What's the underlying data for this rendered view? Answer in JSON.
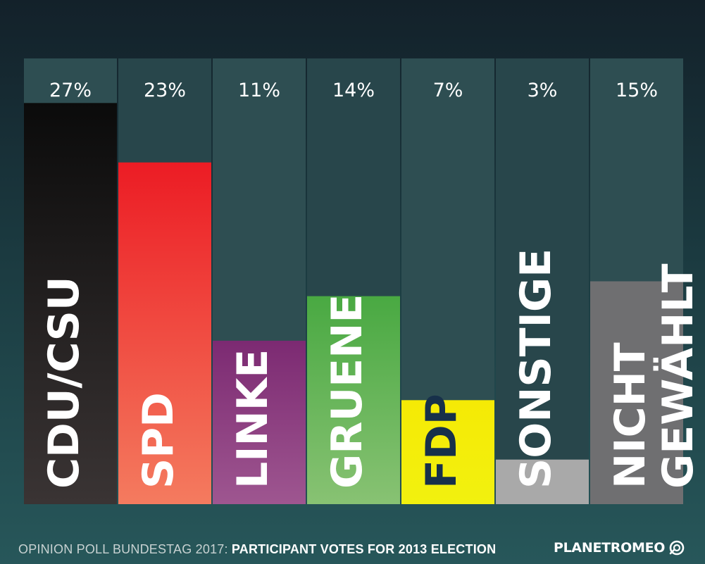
{
  "chart_data": {
    "type": "bar",
    "title": "",
    "xlabel": "",
    "ylabel": "",
    "ylim": [
      0,
      30
    ],
    "categories": [
      "CDU/CSU",
      "SPD",
      "LINKE",
      "GRUENE",
      "FDP",
      "SONSTIGE",
      "NICHT GEWÄHLT"
    ],
    "values": [
      27,
      23,
      11,
      14,
      7,
      3,
      15
    ],
    "value_labels": [
      "27%",
      "23%",
      "11%",
      "14%",
      "7%",
      "3%",
      "15%"
    ],
    "bar_label_lines": [
      [
        "CDU/CSU"
      ],
      [
        "SPD"
      ],
      [
        "LINKE"
      ],
      [
        "GRUENE"
      ],
      [
        "FDP"
      ],
      [
        "SONSTIGE"
      ],
      [
        "NICHT",
        "GEWÄHLT"
      ]
    ],
    "colors": [
      [
        "#0b0b0b",
        "#3a3434"
      ],
      [
        "#ec1c24",
        "#f47b5f"
      ],
      [
        "#7c2a72",
        "#9e5690"
      ],
      [
        "#49a942",
        "#88c273"
      ],
      [
        "#f5ea05",
        "#f2f10f"
      ],
      [
        "#a9a9a9",
        "#a9a9a9"
      ],
      [
        "#6f6f71",
        "#6f6f71"
      ]
    ],
    "label_colors": [
      "#ffffff",
      "#ffffff",
      "#ffffff",
      "#ffffff",
      "#17304a",
      "#ffffff",
      "#ffffff"
    ]
  },
  "footer": {
    "prefix": "OPINION POLL BUNDESTAG 2017: ",
    "bold": "PARTICIPANT VOTES FOR  2013 ELECTION"
  },
  "brand": {
    "name": "PLANETROMEO",
    "icon": "planetromeo-logo-icon"
  }
}
